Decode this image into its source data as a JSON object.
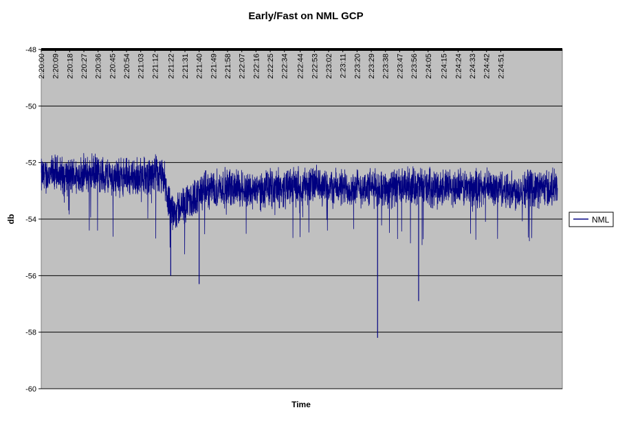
{
  "chart_data": {
    "type": "line",
    "title": "Early/Fast on NML GCP",
    "xlabel": "Time",
    "ylabel": "db",
    "ylim": [
      -60,
      -48
    ],
    "yticks": [
      -48,
      -50,
      -52,
      -54,
      -56,
      -58,
      -60
    ],
    "y_tick_labels": [
      "-48",
      "-50",
      "-52",
      "-54",
      "-56",
      "-58",
      "-60"
    ],
    "x_axis_position": "top",
    "x_tick_labels": [
      "2:20:00",
      "2:20:09",
      "2:20:18",
      "2:20:27",
      "2:20:36",
      "2:20:45",
      "2:20:54",
      "2:21:03",
      "2:21:12",
      "2:21:22",
      "2:21:31",
      "2:21:40",
      "2:21:49",
      "2:21:58",
      "2:22:07",
      "2:22:16",
      "2:22:25",
      "2:22:34",
      "2:22:44",
      "2:22:53",
      "2:23:02",
      "2:23:11",
      "2:23:20",
      "2:23:29",
      "2:23:38",
      "2:23:47",
      "2:23:56",
      "2:24:05",
      "2:24:15",
      "2:24:24",
      "2:24:33",
      "2:24:42",
      "2:24:51"
    ],
    "xlim": [
      "2:20:00",
      "2:25:30"
    ],
    "grid": "horizontal",
    "legend_position": "right",
    "plot_background": "#c0c0c0",
    "series": [
      {
        "name": "NML",
        "color": "#000080",
        "x": [
          "2:20:00",
          "2:20:09",
          "2:20:18",
          "2:20:27",
          "2:20:36",
          "2:20:45",
          "2:20:54",
          "2:21:03",
          "2:21:12",
          "2:21:18",
          "2:21:22",
          "2:21:31",
          "2:21:40",
          "2:21:49",
          "2:21:58",
          "2:22:07",
          "2:22:16",
          "2:22:25",
          "2:22:34",
          "2:22:44",
          "2:22:53",
          "2:23:02",
          "2:23:11",
          "2:23:20",
          "2:23:29",
          "2:23:38",
          "2:23:47",
          "2:23:56",
          "2:24:05",
          "2:24:15",
          "2:24:24",
          "2:24:33",
          "2:24:42",
          "2:24:51",
          "2:25:00",
          "2:25:09",
          "2:25:18",
          "2:25:27"
        ],
        "values": [
          -52.5,
          -52.4,
          -52.5,
          -52.4,
          -52.4,
          -52.5,
          -52.5,
          -52.5,
          -52.4,
          -52.6,
          -53.8,
          -53.5,
          -53.1,
          -52.9,
          -52.9,
          -52.9,
          -53.0,
          -52.9,
          -52.9,
          -52.8,
          -52.8,
          -52.9,
          -52.9,
          -52.9,
          -52.9,
          -52.9,
          -52.9,
          -52.8,
          -52.9,
          -52.9,
          -52.9,
          -52.9,
          -52.9,
          -52.9,
          -53.0,
          -52.9,
          -52.9,
          -52.9
        ],
        "noise_band": 1.0,
        "notable_dips": [
          {
            "x": "2:21:22",
            "value": -56.0
          },
          {
            "x": "2:21:40",
            "value": -56.3
          },
          {
            "x": "2:23:33",
            "value": -58.2
          },
          {
            "x": "2:23:59",
            "value": -56.9
          }
        ]
      }
    ]
  }
}
